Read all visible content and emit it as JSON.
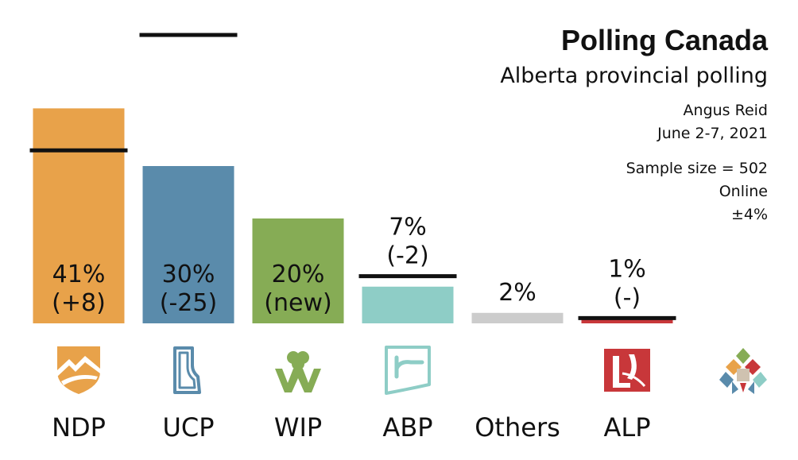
{
  "header": {
    "title": "Polling Canada",
    "subtitle": "Alberta provincial polling",
    "pollster": "Angus Reid",
    "dates": "June 2-7, 2021",
    "sample": "Sample size = 502",
    "method": "Online",
    "margin": "±4%"
  },
  "chart_data": {
    "type": "bar",
    "categories": [
      "NDP",
      "UCP",
      "WIP",
      "ABP",
      "Others",
      "ALP"
    ],
    "values": [
      41,
      30,
      20,
      7,
      2,
      1
    ],
    "previous": [
      33,
      55,
      null,
      9,
      null,
      1
    ],
    "value_labels": [
      "41%",
      "30%",
      "20%",
      "7%",
      "2%",
      "1%"
    ],
    "change_labels": [
      "(+8)",
      "(-25)",
      "(new)",
      "(-2)",
      "",
      "(-)"
    ],
    "colors": [
      "#E8A24A",
      "#5A8BAB",
      "#86AC55",
      "#8ECDC6",
      "#CCCCCC",
      "#C8373A"
    ],
    "ylim": [
      0,
      60
    ],
    "grid": false,
    "legend": "none",
    "icons": [
      "ndp-logo-icon",
      "ucp-logo-icon",
      "wip-logo-icon",
      "abp-logo-icon",
      "",
      "alp-logo-icon",
      "polling-canada-logo-icon"
    ]
  }
}
